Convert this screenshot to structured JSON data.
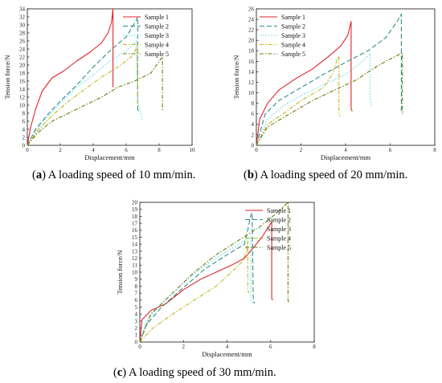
{
  "chart_data": [
    {
      "type": "line",
      "caption_letter": "a",
      "caption_text": "A loading speed of 10 mm/min.",
      "caption_paren_open": "(",
      "caption_paren_close": ")",
      "xlabel": "Displacement/mm",
      "ylabel": "Tension force/N",
      "xlim": [
        0,
        10
      ],
      "ylim": [
        0,
        34
      ],
      "xticks": [
        0,
        2,
        4,
        6,
        8,
        10
      ],
      "yticks": [
        0,
        2,
        4,
        6,
        8,
        10,
        12,
        14,
        16,
        18,
        20,
        22,
        24,
        26,
        28,
        30,
        32,
        34
      ],
      "legend_position": "top-right",
      "series": [
        {
          "name": "Sample 1",
          "color": "#e0242b",
          "dash": "",
          "points": [
            [
              0,
              0
            ],
            [
              0.2,
              4.5
            ],
            [
              0.5,
              9
            ],
            [
              0.9,
              13.5
            ],
            [
              1.5,
              16.8
            ],
            [
              2.2,
              18.5
            ],
            [
              3,
              21
            ],
            [
              3.8,
              23.2
            ],
            [
              4.5,
              25.5
            ],
            [
              4.9,
              28
            ],
            [
              5.1,
              30.5
            ],
            [
              5.2,
              34
            ],
            [
              5.2,
              14.5
            ]
          ]
        },
        {
          "name": "Sample 2",
          "color": "#2d8f8a",
          "dash": "6,3",
          "points": [
            [
              0,
              0
            ],
            [
              0.5,
              4
            ],
            [
              1.2,
              7.5
            ],
            [
              2,
              11
            ],
            [
              3,
              15
            ],
            [
              4,
              19.5
            ],
            [
              5,
              23.5
            ],
            [
              6,
              27
            ],
            [
              6.6,
              31
            ],
            [
              6.7,
              32
            ],
            [
              6.7,
              9
            ],
            [
              6.8,
              8
            ]
          ]
        },
        {
          "name": "Sample 3",
          "color": "#62d8e6",
          "dash": "1.5,2",
          "points": [
            [
              0,
              0
            ],
            [
              0.5,
              3.5
            ],
            [
              1.2,
              7
            ],
            [
              2,
              10.5
            ],
            [
              3,
              14.5
            ],
            [
              4,
              17.5
            ],
            [
              5,
              21
            ],
            [
              6,
              23.5
            ],
            [
              6.5,
              25.5
            ],
            [
              6.6,
              26
            ],
            [
              6.7,
              11
            ],
            [
              7,
              6
            ]
          ]
        },
        {
          "name": "Sample 4",
          "color": "#bfb61c",
          "dash": "5,2,1.5,2",
          "points": [
            [
              0,
              0
            ],
            [
              0.6,
              3.5
            ],
            [
              1.4,
              7
            ],
            [
              2.5,
              11
            ],
            [
              3.5,
              14
            ],
            [
              4.5,
              17
            ],
            [
              5.5,
              19.5
            ],
            [
              6.3,
              22
            ],
            [
              6.6,
              24
            ],
            [
              6.7,
              24.5
            ],
            [
              6.7,
              10
            ],
            [
              6.8,
              9.5
            ]
          ]
        },
        {
          "name": "Sample 5",
          "color": "#6e7e0e",
          "dash": "5,2,1.5,2",
          "points": [
            [
              0,
              0
            ],
            [
              0.6,
              3
            ],
            [
              1.5,
              6
            ],
            [
              2.5,
              8
            ],
            [
              3.5,
              10
            ],
            [
              4.5,
              12
            ],
            [
              5.5,
              14.5
            ],
            [
              6.5,
              16
            ],
            [
              7.5,
              18
            ],
            [
              8.1,
              21.5
            ],
            [
              8.2,
              22
            ],
            [
              8.2,
              8.5
            ]
          ]
        }
      ]
    },
    {
      "type": "line",
      "caption_letter": "b",
      "caption_text": "A loading speed of 20 mm/min.",
      "caption_paren_open": "(",
      "caption_paren_close": ")",
      "xlabel": "Displacement/mm",
      "ylabel": "Tension force/N",
      "xlim": [
        0,
        8
      ],
      "ylim": [
        0,
        26
      ],
      "xticks": [
        0,
        2,
        4,
        6,
        8
      ],
      "yticks": [
        0,
        2,
        4,
        6,
        8,
        10,
        12,
        14,
        16,
        18,
        20,
        22,
        24,
        26
      ],
      "legend_position": "top-left",
      "series": [
        {
          "name": "Sample 1",
          "color": "#e0242b",
          "dash": "",
          "points": [
            [
              0,
              0
            ],
            [
              0.15,
              5
            ],
            [
              0.5,
              8
            ],
            [
              1,
              10.5
            ],
            [
              1.8,
              12.8
            ],
            [
              2.5,
              14.5
            ],
            [
              3.2,
              16.8
            ],
            [
              3.8,
              19
            ],
            [
              4.1,
              21
            ],
            [
              4.25,
              23.6
            ],
            [
              4.25,
              7
            ],
            [
              4.3,
              6.5
            ]
          ]
        },
        {
          "name": "Sample 2",
          "color": "#2d8f8a",
          "dash": "6,3",
          "points": [
            [
              0,
              0
            ],
            [
              0.4,
              6
            ],
            [
              1,
              8.5
            ],
            [
              2,
              11
            ],
            [
              3,
              13.5
            ],
            [
              4,
              15.8
            ],
            [
              5,
              18
            ],
            [
              5.8,
              20.5
            ],
            [
              6.3,
              23.5
            ],
            [
              6.5,
              25
            ],
            [
              6.5,
              6.5
            ],
            [
              6.55,
              6
            ]
          ]
        },
        {
          "name": "Sample 3",
          "color": "#62d8e6",
          "dash": "1.5,2",
          "points": [
            [
              0,
              0
            ],
            [
              0.5,
              5
            ],
            [
              1.2,
              7.5
            ],
            [
              2,
              9.5
            ],
            [
              3,
              11.5
            ],
            [
              4,
              13.5
            ],
            [
              4.7,
              15.8
            ],
            [
              5.1,
              17.5
            ],
            [
              5.1,
              9
            ],
            [
              5.15,
              7.5
            ]
          ]
        },
        {
          "name": "Sample 4",
          "color": "#bfb61c",
          "dash": "5,2,1.5,2",
          "points": [
            [
              0,
              0
            ],
            [
              0.5,
              4
            ],
            [
              1.2,
              6
            ],
            [
              2,
              8.5
            ],
            [
              3,
              11
            ],
            [
              3.4,
              13.5
            ],
            [
              3.6,
              16
            ],
            [
              3.7,
              17
            ],
            [
              3.7,
              6
            ],
            [
              3.75,
              5.5
            ]
          ]
        },
        {
          "name": "Sample 5",
          "color": "#6e7e0e",
          "dash": "5,2,1.5,2",
          "points": [
            [
              0,
              0
            ],
            [
              0.5,
              3.5
            ],
            [
              1.5,
              6
            ],
            [
              2.5,
              8.5
            ],
            [
              3.5,
              10.5
            ],
            [
              4.5,
              12.5
            ],
            [
              5.2,
              14.5
            ],
            [
              5.8,
              16
            ],
            [
              6.5,
              17.5
            ],
            [
              6.55,
              17.5
            ],
            [
              6.55,
              6.5
            ],
            [
              6.6,
              6
            ]
          ]
        }
      ]
    },
    {
      "type": "line",
      "caption_letter": "c",
      "caption_text": "A loading speed of 30 mm/min.",
      "caption_paren_open": "(",
      "caption_paren_close": ")",
      "xlabel": "Displacement/mm",
      "ylabel": "Tension force/N",
      "xlim": [
        0,
        8
      ],
      "ylim": [
        0,
        20
      ],
      "xticks": [
        0,
        2,
        4,
        6,
        8
      ],
      "yticks": [
        0,
        1,
        2,
        3,
        4,
        5,
        6,
        7,
        8,
        9,
        10,
        11,
        12,
        13,
        14,
        15,
        16,
        17,
        18,
        19,
        20
      ],
      "legend_position": "top-right",
      "series": [
        {
          "name": "Sample 1",
          "color": "#e0242b",
          "dash": "",
          "points": [
            [
              0,
              0
            ],
            [
              0.1,
              3.2
            ],
            [
              0.5,
              4.5
            ],
            [
              1.2,
              5.5
            ],
            [
              2,
              7.5
            ],
            [
              2.8,
              9
            ],
            [
              3.5,
              10
            ],
            [
              4.2,
              11
            ],
            [
              4.8,
              12
            ],
            [
              5.2,
              13.5
            ],
            [
              5.6,
              15
            ],
            [
              5.9,
              16.5
            ],
            [
              6.05,
              17.2
            ],
            [
              6.05,
              6.2
            ],
            [
              6.1,
              6
            ]
          ]
        },
        {
          "name": "Sample 2",
          "color": "#2d8f8a",
          "dash": "6,3",
          "points": [
            [
              0,
              0
            ],
            [
              0.3,
              2.5
            ],
            [
              1,
              5
            ],
            [
              2,
              7.8
            ],
            [
              3,
              10.5
            ],
            [
              4,
              12.5
            ],
            [
              4.8,
              14
            ],
            [
              5.1,
              18.2
            ],
            [
              5.15,
              18.5
            ],
            [
              5.2,
              6.5
            ],
            [
              5.25,
              5.5
            ]
          ]
        },
        {
          "name": "Sample 3",
          "color": "#62d8e6",
          "dash": "1.5,2",
          "points": [
            [
              0,
              0
            ],
            [
              0.3,
              3
            ],
            [
              1,
              5.5
            ],
            [
              2,
              8.5
            ],
            [
              3,
              11
            ],
            [
              4,
              13
            ],
            [
              4.8,
              14.5
            ],
            [
              5.1,
              15
            ],
            [
              5.1,
              6
            ],
            [
              5.2,
              5.5
            ]
          ]
        },
        {
          "name": "Sample 4",
          "color": "#bfb61c",
          "dash": "5,2,1.5,2",
          "points": [
            [
              0,
              0
            ],
            [
              0.6,
              2
            ],
            [
              1.5,
              4
            ],
            [
              2.5,
              6
            ],
            [
              3.5,
              8
            ],
            [
              4.2,
              10
            ],
            [
              4.7,
              11.5
            ],
            [
              4.9,
              13
            ],
            [
              4.95,
              14.5
            ],
            [
              4.95,
              7.5
            ],
            [
              5,
              7
            ]
          ]
        },
        {
          "name": "Sample 5",
          "color": "#6e7e0e",
          "dash": "5,2,1.5,2",
          "points": [
            [
              0,
              0
            ],
            [
              0.5,
              4
            ],
            [
              1.5,
              7
            ],
            [
              2.5,
              10
            ],
            [
              3.5,
              12.5
            ],
            [
              4.5,
              14.5
            ],
            [
              5.5,
              16.5
            ],
            [
              6.3,
              18.5
            ],
            [
              6.8,
              20
            ],
            [
              6.8,
              6
            ],
            [
              6.85,
              5.5
            ]
          ]
        }
      ]
    }
  ]
}
